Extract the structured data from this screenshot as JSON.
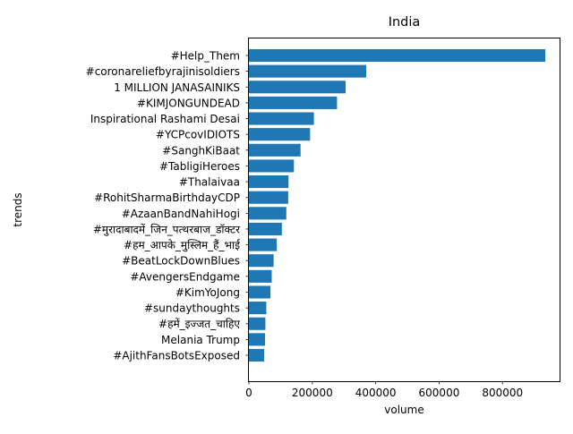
{
  "chart_data": {
    "type": "bar",
    "orientation": "horizontal",
    "title": "India",
    "xlabel": "volume",
    "ylabel": "trends",
    "xlim": [
      0,
      980000
    ],
    "xticks": [
      0,
      200000,
      400000,
      600000,
      800000
    ],
    "xtick_labels": [
      "0",
      "200000",
      "400000",
      "600000",
      "800000"
    ],
    "grid": false,
    "bar_color": "#1f77b4",
    "categories": [
      "#Help_Them",
      "#coronareliefbyrajinisoldiers",
      "1 MILLION JANASAINIKS",
      "#KIMJONGUNDEAD",
      "Inspirational Rashami Desai",
      "#YCPcovIDIOTS",
      "#SanghKiBaat",
      "#TabligiHeroes",
      "#Thalaivaa",
      "#RohitSharmaBirthdayCDP",
      "#AzaanBandNahiHogi",
      "#मुरादाबादमें_जिन_पत्थरबाज_डॉक्टर",
      "#हम_आपके_मुस्लिम_हैं_भाई",
      "#BeatLockDownBlues",
      "#AvengersEndgame",
      "#KimYoJong",
      "#sundaythoughts",
      "#हमें_इज्जत_चाहिए",
      "Melania Trump",
      "#AjithFansBotsExposed"
    ],
    "values": [
      935000,
      370000,
      305000,
      278000,
      205000,
      193000,
      163000,
      142000,
      125000,
      124000,
      118000,
      104000,
      88000,
      78000,
      72000,
      68000,
      55000,
      52000,
      51000,
      48000
    ]
  }
}
